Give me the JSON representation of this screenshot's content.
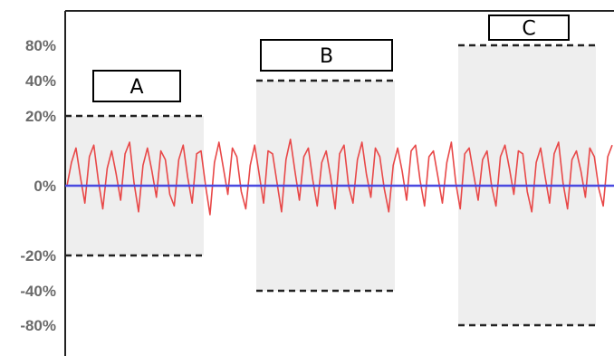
{
  "chart_data": {
    "type": "line",
    "title": "",
    "xlabel": "",
    "ylabel": "",
    "y_ticks": [
      "80%",
      "40%",
      "20%",
      "0%",
      "-20%",
      "-40%",
      "-80%"
    ],
    "grid": false,
    "legend": "none",
    "series": [
      {
        "color": "#e84848",
        "values": [
          0,
          8,
          13,
          3,
          -6,
          10,
          14,
          2,
          -8,
          6,
          12,
          4,
          -5,
          11,
          15,
          1,
          -9,
          7,
          13,
          5,
          -4,
          12,
          9,
          -3,
          -7,
          9,
          14,
          3,
          -6,
          11,
          12,
          0,
          -10,
          8,
          15,
          6,
          -3,
          13,
          10,
          -2,
          -8,
          7,
          14,
          4,
          -6,
          12,
          11,
          1,
          -9,
          9,
          16,
          5,
          -5,
          10,
          13,
          2,
          -7,
          8,
          12,
          3,
          -8,
          11,
          14,
          0,
          -6,
          9,
          15,
          4,
          -4,
          13,
          10,
          -1,
          -9,
          7,
          13,
          5,
          -5,
          12,
          14,
          2,
          -7,
          10,
          12,
          3,
          -6,
          8,
          15,
          1,
          -8,
          11,
          13,
          4,
          -5,
          9,
          12,
          0,
          -7,
          10,
          14,
          6,
          -3,
          12,
          11,
          -2,
          -9,
          8,
          13,
          3,
          -6,
          11,
          15,
          1,
          -8,
          9,
          12,
          5,
          -4,
          13,
          10,
          -1,
          -7,
          10,
          14
        ]
      },
      {
        "color": "#4a4ae0",
        "values": [
          0,
          0
        ]
      }
    ],
    "bands": [
      {
        "label": "A",
        "upper": 20,
        "lower": -20
      },
      {
        "label": "B",
        "upper": 40,
        "lower": -40
      },
      {
        "label": "C",
        "upper": 80,
        "lower": -80
      }
    ],
    "colors": {
      "band_fill": "#eeeeee",
      "axis": "#222222",
      "dashed": "#222222"
    }
  }
}
